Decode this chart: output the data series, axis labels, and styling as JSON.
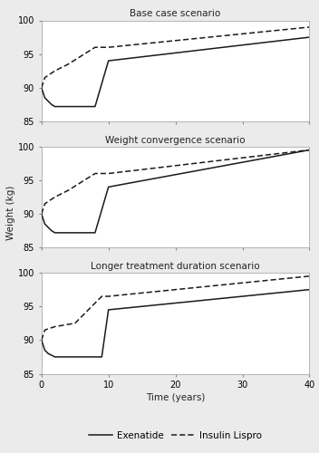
{
  "title1": "Base case scenario",
  "title2": "Weight convergence scenario",
  "title3": "Longer treatment duration scenario",
  "xlabel": "Time (years)",
  "ylabel": "Weight (kg)",
  "ylim": [
    85,
    100
  ],
  "yticks": [
    85,
    90,
    95,
    100
  ],
  "xlim": [
    0,
    40
  ],
  "xticks": [
    0,
    10,
    20,
    30,
    40
  ],
  "panel1": {
    "exenatide_x": [
      0,
      0.5,
      1.5,
      2,
      3,
      8,
      10,
      40
    ],
    "exenatide_y": [
      90,
      88.5,
      87.5,
      87.2,
      87.2,
      87.2,
      94.0,
      97.5
    ],
    "lispro_x": [
      0,
      0.5,
      2,
      4,
      8,
      10,
      40
    ],
    "lispro_y": [
      90,
      91.5,
      92.5,
      93.5,
      96.0,
      96.0,
      99.0
    ]
  },
  "panel2": {
    "exenatide_x": [
      0,
      0.5,
      1.5,
      2,
      3,
      8,
      10,
      40
    ],
    "exenatide_y": [
      90,
      88.5,
      87.5,
      87.2,
      87.2,
      87.2,
      94.0,
      99.5
    ],
    "lispro_x": [
      0,
      0.5,
      2,
      4,
      8,
      10,
      40
    ],
    "lispro_y": [
      90,
      91.5,
      92.5,
      93.5,
      96.0,
      96.0,
      99.5
    ]
  },
  "panel3": {
    "exenatide_x": [
      0,
      0.5,
      1,
      2,
      9,
      10,
      40
    ],
    "exenatide_y": [
      90,
      88.5,
      88.0,
      87.5,
      87.5,
      94.5,
      97.5
    ],
    "lispro_x": [
      0,
      0.5,
      2,
      5,
      9,
      10,
      40
    ],
    "lispro_y": [
      90,
      91.5,
      92.0,
      92.5,
      96.5,
      96.5,
      99.5
    ]
  },
  "line_color": "#1a1a1a",
  "bg_color": "#ebebeb",
  "panel_bg": "#ffffff",
  "legend_labels": [
    "Exenatide",
    "Insulin Lispro"
  ],
  "title_fontsize": 7.5,
  "label_fontsize": 7.5,
  "tick_fontsize": 7,
  "legend_fontsize": 7.5
}
